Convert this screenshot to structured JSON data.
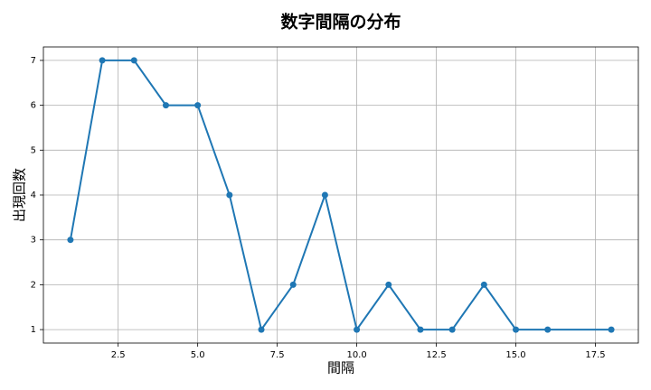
{
  "chart_data": {
    "type": "line",
    "title": "数字間隔の分布",
    "x_label": "間隔",
    "y_label": "出現回数",
    "x": [
      1,
      2,
      3,
      4,
      5,
      6,
      7,
      8,
      9,
      10,
      11,
      12,
      13,
      14,
      15,
      16,
      18
    ],
    "values": [
      3,
      7,
      7,
      6,
      6,
      4,
      1,
      2,
      4,
      1,
      2,
      1,
      1,
      2,
      1,
      1,
      1
    ],
    "color": "#1f77b4",
    "xlim": [
      0.15,
      18.85
    ],
    "xticks": [
      {
        "value": 2.5,
        "label": "2.5"
      },
      {
        "value": 5,
        "label": "5.0"
      },
      {
        "value": 7.5,
        "label": "7.5"
      },
      {
        "value": 10,
        "label": "10.0"
      },
      {
        "value": 12.5,
        "label": "12.5"
      },
      {
        "value": 15,
        "label": "15.0"
      },
      {
        "value": 17.5,
        "label": "17.5"
      }
    ],
    "ylim": [
      0.7,
      7.3
    ],
    "yticks": [
      1,
      2,
      3,
      4,
      5,
      6,
      7
    ],
    "grid": true
  }
}
